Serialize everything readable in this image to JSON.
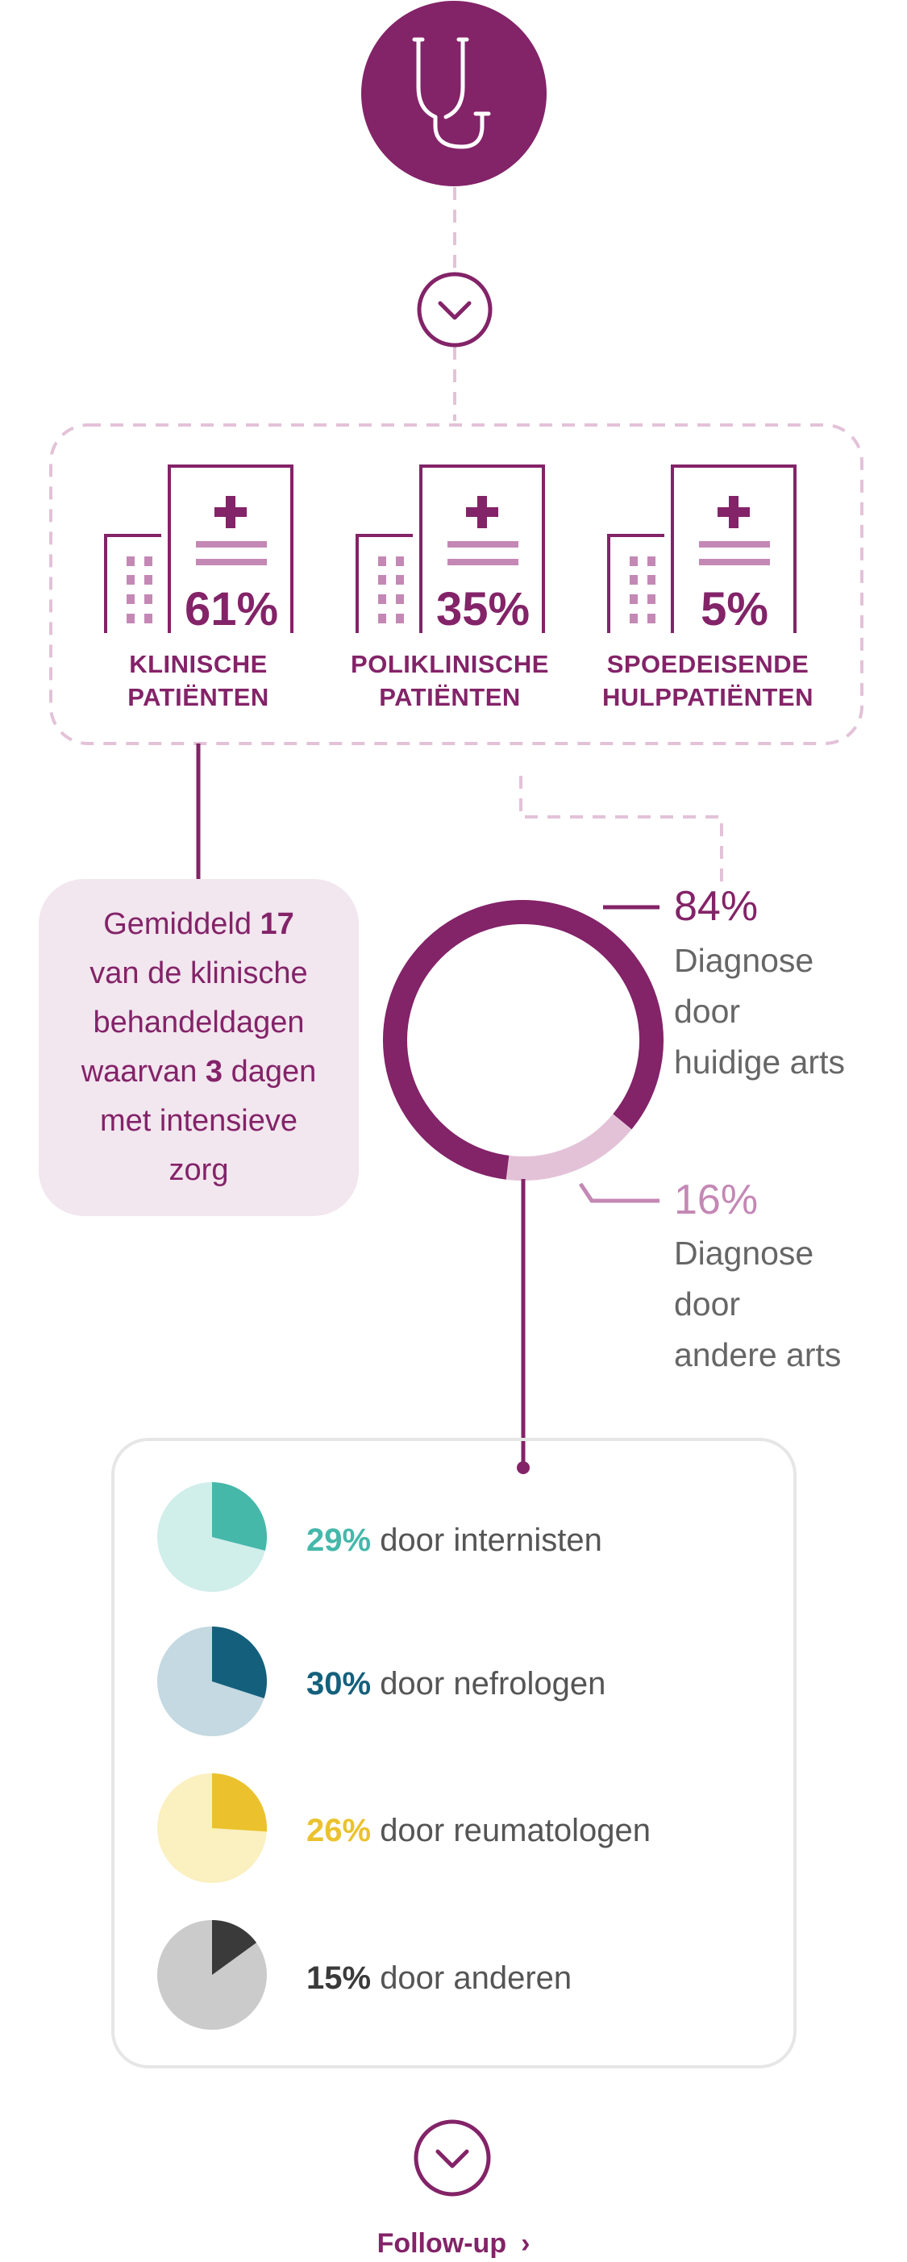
{
  "colors": {
    "primary": "#832368",
    "primary_light": "#c488b5",
    "box_bg": "#f2e6ef",
    "dash": "#e3c2d8",
    "text_gray": "#666666"
  },
  "icons": {
    "top": "stethoscope-icon",
    "chevron": "chevron-down-icon",
    "building": "hospital-building-icon",
    "followup": "chevron-right-icon"
  },
  "patient_types": [
    {
      "pct": "61%",
      "label": "KLINISCHE\nPATIËNTEN"
    },
    {
      "pct": "35%",
      "label": "POLIKLINISCHE\nPATIËNTEN"
    },
    {
      "pct": "5%",
      "label": "SPOEDEISENDE\nHULPPATIËNTEN"
    }
  ],
  "stay_box": {
    "line1_a": "Gemiddeld ",
    "line1_num": "17",
    "line2": "van de klinische",
    "line3": "behandeldagen",
    "line4_a": "waarvan ",
    "line4_num": "3",
    "line4_b": " dagen",
    "line5": "met intensieve",
    "line6": "zorg"
  },
  "diagnosis": {
    "current": {
      "pct": "84%",
      "l1": "Diagnose",
      "l2": "door",
      "l3": "huidige arts"
    },
    "other": {
      "pct": "16%",
      "l1": "Diagnose",
      "l2": "door",
      "l3": "andere arts"
    }
  },
  "specialists": [
    {
      "pct": "29%",
      "text": "door internisten",
      "color": "#45b8aa",
      "light": "#d0eeea",
      "value": 29
    },
    {
      "pct": "30%",
      "text": "door nefrologen",
      "color": "#14607c",
      "light": "#c4d9e1",
      "value": 30
    },
    {
      "pct": "26%",
      "text": "door reumatologen",
      "color": "#ebc22d",
      "light": "#faf0c0",
      "value": 26
    },
    {
      "pct": "15%",
      "text": "door anderen",
      "color": "#3a3a3a",
      "light": "#cbcbcb",
      "value": 15
    }
  ],
  "followup": {
    "label": "Follow-up",
    "arrow": "›"
  },
  "chart_data": [
    {
      "type": "pie",
      "categories": [
        "Diagnose door huidige arts",
        "Diagnose door andere arts"
      ],
      "values": [
        84,
        16
      ]
    },
    {
      "type": "bar",
      "categories": [
        "KLINISCHE PATIËNTEN",
        "POLIKLINISCHE PATIËNTEN",
        "SPOEDEISENDE HULPPATIËNTEN"
      ],
      "values": [
        61,
        35,
        5
      ]
    },
    {
      "type": "pie",
      "categories": [
        "door internisten",
        "door nefrologen",
        "door reumatologen",
        "door anderen"
      ],
      "values": [
        29,
        30,
        26,
        15
      ]
    }
  ]
}
